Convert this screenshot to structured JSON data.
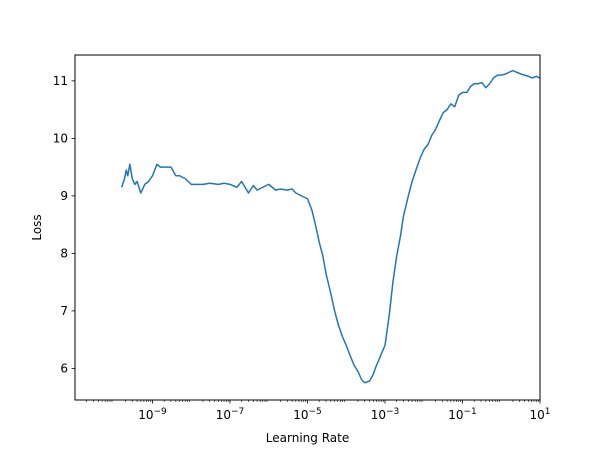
{
  "chart_data": {
    "type": "line",
    "title": "",
    "xlabel": "Learning Rate",
    "ylabel": "Loss",
    "xscale": "log",
    "xlim": [
      1e-11,
      10
    ],
    "ylim": [
      5.45,
      11.45
    ],
    "grid": false,
    "x_ticks": [
      1e-09,
      1e-07,
      1e-05,
      0.001,
      0.1,
      10
    ],
    "x_tick_labels": [
      {
        "base": "10",
        "exp": "−9"
      },
      {
        "base": "10",
        "exp": "−7"
      },
      {
        "base": "10",
        "exp": "−5"
      },
      {
        "base": "10",
        "exp": "−3"
      },
      {
        "base": "10",
        "exp": "−1"
      },
      {
        "base": "10",
        "exp": "1"
      }
    ],
    "y_ticks": [
      6,
      7,
      8,
      9,
      10,
      11
    ],
    "y_tick_labels": [
      "6",
      "7",
      "8",
      "9",
      "10",
      "11"
    ],
    "line_color": "#1f77b4",
    "series": [
      {
        "x": [
          1.6e-10,
          1.9e-10,
          2.1e-10,
          2.3e-10,
          2.6e-10,
          3e-10,
          3.5e-10,
          4e-10,
          5e-10,
          6.3e-10,
          7.9e-10,
          1e-09,
          1.3e-09,
          1.6e-09,
          2e-09,
          3e-09,
          4e-09,
          5e-09,
          7e-09,
          1e-08,
          2e-08,
          3e-08,
          5e-08,
          7e-08,
          1e-07,
          1.5e-07,
          2e-07,
          3e-07,
          4e-07,
          5e-07,
          7e-07,
          1e-06,
          1.5e-06,
          2e-06,
          3e-06,
          4e-06,
          5e-06,
          7e-06,
          1e-05,
          1.3e-05,
          1.6e-05,
          2e-05,
          2.5e-05,
          3e-05,
          4e-05,
          5e-05,
          6.3e-05,
          8e-05,
          0.0001,
          0.00013,
          0.00016,
          0.0002,
          0.00025,
          0.0003,
          0.0004,
          0.0005,
          0.0006,
          0.0007,
          0.0008,
          0.001,
          0.0013,
          0.0016,
          0.002,
          0.0025,
          0.003,
          0.004,
          0.005,
          0.0063,
          0.008,
          0.01,
          0.013,
          0.016,
          0.02,
          0.025,
          0.032,
          0.04,
          0.05,
          0.063,
          0.08,
          0.1,
          0.13,
          0.16,
          0.2,
          0.25,
          0.32,
          0.4,
          0.5,
          0.63,
          0.8,
          1.0,
          1.3,
          1.6,
          2.0,
          2.5,
          3.2,
          4.0,
          5.0,
          6.3,
          8.0,
          10.0
        ],
        "y": [
          9.15,
          9.3,
          9.45,
          9.35,
          9.55,
          9.3,
          9.2,
          9.25,
          9.05,
          9.2,
          9.25,
          9.35,
          9.55,
          9.5,
          9.5,
          9.5,
          9.35,
          9.35,
          9.3,
          9.2,
          9.2,
          9.22,
          9.2,
          9.22,
          9.2,
          9.15,
          9.25,
          9.05,
          9.18,
          9.1,
          9.15,
          9.2,
          9.1,
          9.12,
          9.1,
          9.12,
          9.05,
          9.0,
          8.95,
          8.75,
          8.5,
          8.2,
          7.95,
          7.65,
          7.3,
          7.0,
          6.75,
          6.55,
          6.4,
          6.2,
          6.05,
          5.95,
          5.8,
          5.75,
          5.78,
          5.9,
          6.05,
          6.15,
          6.25,
          6.4,
          6.95,
          7.5,
          7.95,
          8.3,
          8.65,
          9.0,
          9.25,
          9.45,
          9.65,
          9.8,
          9.9,
          10.05,
          10.15,
          10.3,
          10.45,
          10.5,
          10.6,
          10.55,
          10.75,
          10.8,
          10.8,
          10.9,
          10.95,
          10.95,
          10.97,
          10.88,
          10.95,
          11.05,
          11.1,
          11.1,
          11.12,
          11.15,
          11.18,
          11.15,
          11.12,
          11.1,
          11.08,
          11.05,
          11.08,
          11.05
        ]
      }
    ]
  }
}
